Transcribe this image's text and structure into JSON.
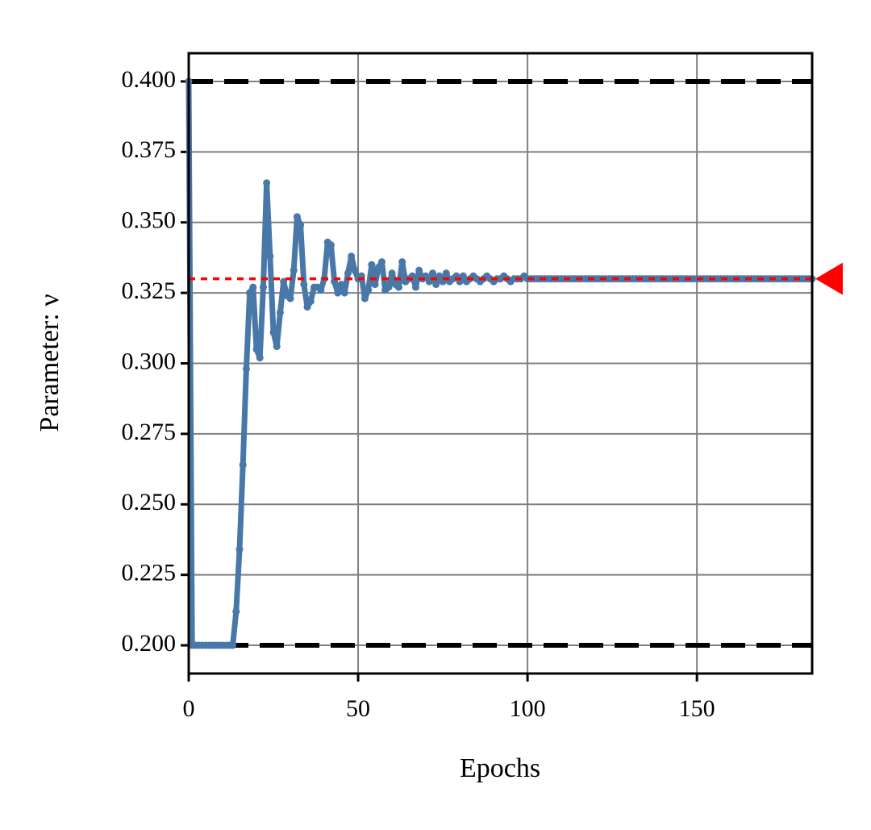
{
  "chart_data": {
    "type": "line",
    "xlabel": "Epochs",
    "ylabel": "Parameter: ν",
    "xlim": [
      0,
      184
    ],
    "ylim": [
      0.19,
      0.41
    ],
    "xticks": [
      0,
      50,
      100,
      150
    ],
    "yticks": [
      {
        "value": 0.2,
        "label": "0.200"
      },
      {
        "value": 0.225,
        "label": "0.225"
      },
      {
        "value": 0.25,
        "label": "0.250"
      },
      {
        "value": 0.275,
        "label": "0.275"
      },
      {
        "value": 0.3,
        "label": "0.300"
      },
      {
        "value": 0.325,
        "label": "0.325"
      },
      {
        "value": 0.35,
        "label": "0.350"
      },
      {
        "value": 0.375,
        "label": "0.375"
      },
      {
        "value": 0.4,
        "label": "0.400"
      }
    ],
    "grid": true,
    "bounds": {
      "values": [
        0.4,
        0.2
      ],
      "color": "#000000"
    },
    "target": {
      "value": 0.33,
      "color": "#ff0000"
    },
    "x": [
      0,
      1,
      2,
      3,
      4,
      5,
      6,
      7,
      8,
      9,
      10,
      11,
      12,
      13,
      14,
      15,
      16,
      17,
      18,
      19,
      20,
      21,
      22,
      23,
      24,
      25,
      26,
      27,
      28,
      29,
      30,
      31,
      32,
      33,
      34,
      35,
      36,
      37,
      38,
      39,
      40,
      41,
      42,
      43,
      44,
      45,
      46,
      47,
      48,
      49,
      50,
      51,
      52,
      53,
      54,
      55,
      56,
      57,
      58,
      59,
      60,
      61,
      62,
      63,
      64,
      65,
      66,
      67,
      68,
      69,
      70,
      71,
      72,
      73,
      74,
      75,
      76,
      77,
      78,
      79,
      80,
      81,
      82,
      83,
      84,
      85,
      86,
      87,
      88,
      89,
      90,
      91,
      92,
      93,
      94,
      95,
      96,
      97,
      98,
      99,
      100,
      101,
      102,
      103,
      104,
      105,
      106,
      107,
      108,
      109,
      110,
      111,
      112,
      113,
      114,
      115,
      116,
      117,
      118,
      119,
      120,
      121,
      122,
      123,
      124,
      125,
      126,
      127,
      128,
      129,
      130,
      131,
      132,
      133,
      134,
      135,
      136,
      137,
      138,
      139,
      140,
      141,
      142,
      143,
      144,
      145,
      146,
      147,
      148,
      149,
      150,
      151,
      152,
      153,
      154,
      155,
      156,
      157,
      158,
      159,
      160,
      161,
      162,
      163,
      164,
      165,
      166,
      167,
      168,
      169,
      170,
      171,
      172,
      173,
      174,
      175,
      176,
      177,
      178,
      179,
      180,
      181,
      182,
      183,
      184
    ],
    "series": [
      {
        "color": "#4878a8",
        "values": [
          0.4,
          0.2,
          0.2,
          0.2,
          0.2,
          0.2,
          0.2,
          0.2,
          0.2,
          0.2,
          0.2,
          0.2,
          0.2,
          0.2,
          0.212,
          0.234,
          0.264,
          0.298,
          0.325,
          0.327,
          0.305,
          0.302,
          0.327,
          0.364,
          0.338,
          0.311,
          0.306,
          0.318,
          0.329,
          0.324,
          0.323,
          0.333,
          0.352,
          0.349,
          0.328,
          0.32,
          0.322,
          0.327,
          0.327,
          0.326,
          0.33,
          0.343,
          0.342,
          0.329,
          0.325,
          0.328,
          0.325,
          0.332,
          0.338,
          0.333,
          0.33,
          0.331,
          0.323,
          0.326,
          0.335,
          0.328,
          0.334,
          0.336,
          0.326,
          0.327,
          0.332,
          0.328,
          0.327,
          0.336,
          0.329,
          0.33,
          0.331,
          0.327,
          0.333,
          0.33,
          0.331,
          0.329,
          0.332,
          0.328,
          0.331,
          0.329,
          0.332,
          0.329,
          0.33,
          0.331,
          0.329,
          0.331,
          0.329,
          0.33,
          0.331,
          0.33,
          0.329,
          0.33,
          0.331,
          0.33,
          0.329,
          0.33,
          0.33,
          0.331,
          0.33,
          0.329,
          0.33,
          0.33,
          0.33,
          0.331,
          0.33,
          0.33,
          0.33,
          0.33,
          0.33,
          0.33,
          0.33,
          0.33,
          0.33,
          0.33,
          0.33,
          0.33,
          0.33,
          0.33,
          0.33,
          0.33,
          0.33,
          0.33,
          0.33,
          0.33,
          0.33,
          0.33,
          0.33,
          0.33,
          0.33,
          0.33,
          0.33,
          0.33,
          0.33,
          0.33,
          0.33,
          0.33,
          0.33,
          0.33,
          0.33,
          0.33,
          0.33,
          0.33,
          0.33,
          0.33,
          0.33,
          0.33,
          0.33,
          0.33,
          0.33,
          0.33,
          0.33,
          0.33,
          0.33,
          0.33,
          0.33,
          0.33,
          0.33,
          0.33,
          0.33,
          0.33,
          0.33,
          0.33,
          0.33,
          0.33,
          0.33,
          0.33,
          0.33,
          0.33,
          0.33,
          0.33,
          0.33,
          0.33,
          0.33,
          0.33,
          0.33,
          0.33,
          0.33,
          0.33,
          0.33,
          0.33,
          0.33,
          0.33,
          0.33,
          0.33,
          0.33,
          0.33,
          0.33,
          0.33,
          0.33
        ]
      }
    ]
  }
}
